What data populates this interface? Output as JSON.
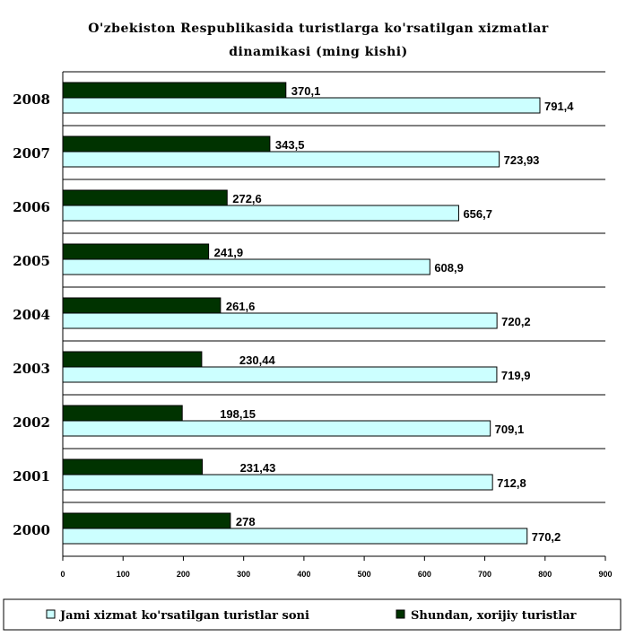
{
  "chart_data": {
    "type": "bar",
    "orientation": "horizontal",
    "title_lines": [
      "O'zbekiston Respublikasida turistlarga ko'rsatilgan xizmatlar",
      "dinamikasi (ming kishi)"
    ],
    "categories": [
      "2008",
      "2007",
      "2006",
      "2005",
      "2004",
      "2003",
      "2002",
      "2001",
      "2000"
    ],
    "series": [
      {
        "name": "Shundan, xorijiy turistlar",
        "color": "#003300",
        "values": [
          370.1,
          343.5,
          272.6,
          241.9,
          261.6,
          230.44,
          198.15,
          231.43,
          278
        ],
        "labels": [
          "370,1",
          "343,5",
          "272,6",
          "241,9",
          "261,6",
          "230,44",
          "198,15",
          "231,43",
          "278"
        ]
      },
      {
        "name": "Jami xizmat ko'rsatilgan turistlar soni",
        "color": "#ccffff",
        "values": [
          791.4,
          723.93,
          656.7,
          608.9,
          720.2,
          719.9,
          709.1,
          712.8,
          770.2
        ],
        "labels": [
          "791,4",
          "723,93",
          "656,7",
          "608,9",
          "720,2",
          "719,9",
          "709,1",
          "712,8",
          "770,2"
        ]
      }
    ],
    "xlim": [
      0,
      900
    ],
    "xticks": [
      "0",
      "100",
      "200",
      "300",
      "400",
      "500",
      "600",
      "700",
      "800",
      "900"
    ],
    "grid": "horizontal category separators",
    "legend": {
      "placement": "bottom",
      "entries": [
        "Jami xizmat ko'rsatilgan turistlar soni",
        "Shundan, xorijiy turistlar"
      ]
    }
  }
}
